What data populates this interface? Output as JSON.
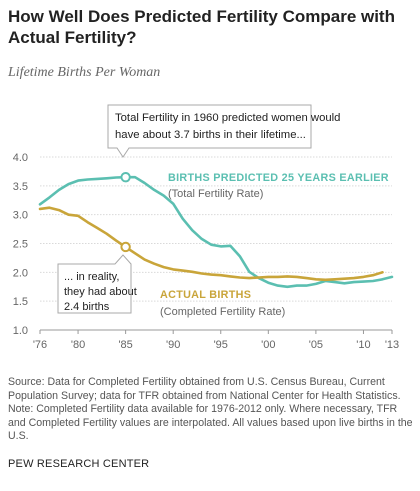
{
  "header": {
    "title": "How Well Does Predicted Fertility Compare with Actual Fertility?",
    "subtitle": "Lifetime Births Per Woman"
  },
  "chart_data": {
    "type": "line",
    "ylim": [
      1.0,
      4.0
    ],
    "yticks": [
      "1.0",
      "1.5",
      "2.0",
      "2.5",
      "3.0",
      "3.5",
      "4.0"
    ],
    "xlim": [
      1976,
      2013
    ],
    "xticks": [
      {
        "year": 1976,
        "label": "'76"
      },
      {
        "year": 1980,
        "label": "'80"
      },
      {
        "year": 1985,
        "label": "'85"
      },
      {
        "year": 1990,
        "label": "'90"
      },
      {
        "year": 1995,
        "label": "'95"
      },
      {
        "year": 2000,
        "label": "'00"
      },
      {
        "year": 2005,
        "label": "'05"
      },
      {
        "year": 2010,
        "label": "'10"
      },
      {
        "year": 2013,
        "label": "'13"
      }
    ],
    "grid": true,
    "series": [
      {
        "name": "BIRTHS PREDICTED 25 YEARS EARLIER",
        "sublabel": "(Total Fertility Rate)",
        "color": "#5bbfb1",
        "x": [
          1976,
          1977,
          1978,
          1979,
          1980,
          1981,
          1982,
          1983,
          1984,
          1985,
          1986,
          1987,
          1988,
          1989,
          1990,
          1991,
          1992,
          1993,
          1994,
          1995,
          1996,
          1997,
          1998,
          1999,
          2000,
          2001,
          2002,
          2003,
          2004,
          2005,
          2006,
          2007,
          2008,
          2009,
          2010,
          2011,
          2012,
          2013
        ],
        "y": [
          3.18,
          3.3,
          3.43,
          3.53,
          3.59,
          3.61,
          3.62,
          3.63,
          3.645,
          3.65,
          3.65,
          3.55,
          3.43,
          3.33,
          3.19,
          2.93,
          2.73,
          2.58,
          2.48,
          2.45,
          2.46,
          2.28,
          2.01,
          1.9,
          1.82,
          1.77,
          1.75,
          1.77,
          1.77,
          1.8,
          1.85,
          1.83,
          1.81,
          1.83,
          1.84,
          1.85,
          1.88,
          1.92
        ]
      },
      {
        "name": "ACTUAL BIRTHS",
        "sublabel": "(Completed Fertility Rate)",
        "color": "#c9a53a",
        "x": [
          1976,
          1977,
          1978,
          1979,
          1980,
          1981,
          1982,
          1983,
          1984,
          1985,
          1986,
          1987,
          1988,
          1989,
          1990,
          1991,
          1992,
          1993,
          1994,
          1995,
          1996,
          1997,
          1998,
          1999,
          2000,
          2001,
          2002,
          2003,
          2004,
          2005,
          2006,
          2007,
          2008,
          2009,
          2010,
          2011,
          2012
        ],
        "y": [
          3.1,
          3.12,
          3.08,
          3.0,
          2.98,
          2.87,
          2.77,
          2.67,
          2.55,
          2.44,
          2.33,
          2.22,
          2.15,
          2.09,
          2.05,
          2.03,
          2.01,
          1.98,
          1.96,
          1.95,
          1.93,
          1.91,
          1.9,
          1.91,
          1.92,
          1.92,
          1.93,
          1.92,
          1.9,
          1.88,
          1.87,
          1.88,
          1.89,
          1.9,
          1.92,
          1.95,
          2.0
        ]
      }
    ],
    "highlights": [
      {
        "series": 0,
        "x": 1985,
        "y": 3.65
      },
      {
        "series": 1,
        "x": 1985,
        "y": 2.44
      }
    ],
    "annotations": [
      {
        "text": "Total Fertility in 1960 predicted women would have about 3.7 births in their lifetime..."
      },
      {
        "text": "... in reality, they had about 2.4 births"
      }
    ]
  },
  "footer": {
    "source": "Source: Data for Completed Fertility obtained from U.S. Census Bureau, Current Population Survey; data for TFR obtained from National Center for Health Statistics.",
    "note": "Note: Completed Fertility data available for 1976-2012 only. Where necessary, TFR and Completed Fertility values are interpolated. All values based upon live births in the U.S.",
    "brand": "PEW RESEARCH CENTER"
  }
}
